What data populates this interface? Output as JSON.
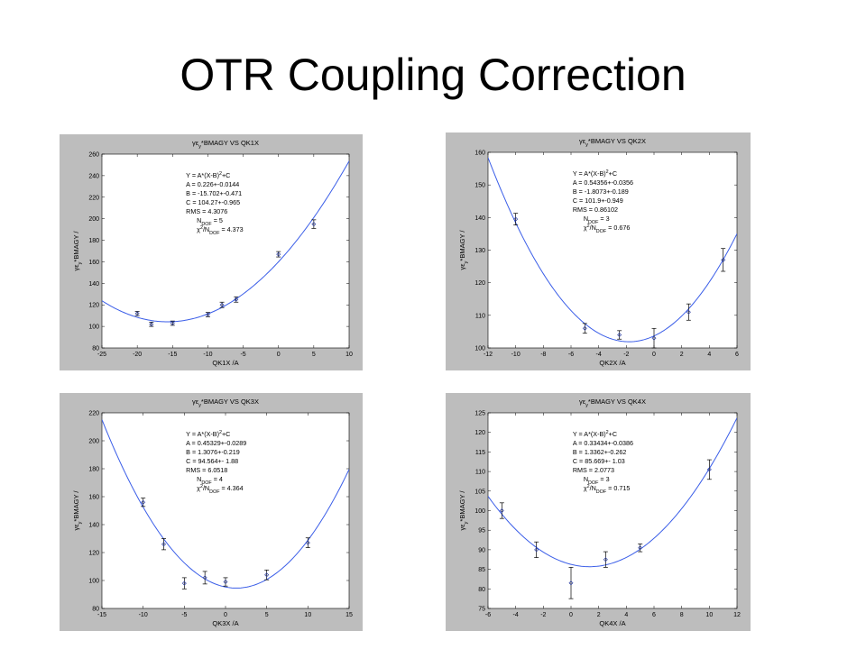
{
  "title": "OTR Coupling Correction",
  "colors": {
    "curve": "#3b5ee8",
    "marker": "#2d3fa0",
    "panel_bg": "#bdbdbd",
    "plot_bg": "#ffffff"
  },
  "chart_data": [
    {
      "type": "scatter",
      "title": "γε_y*BMAGY VS QK1X",
      "xlabel": "QK1X /A",
      "ylabel": "γε_y*BMAGY /",
      "xlim": [
        -25,
        10
      ],
      "ylim": [
        80,
        260
      ],
      "xticks": [
        -25,
        -20,
        -15,
        -10,
        -5,
        0,
        5,
        10
      ],
      "yticks": [
        80,
        100,
        120,
        140,
        160,
        180,
        200,
        220,
        240,
        260
      ],
      "points": [
        {
          "x": -20,
          "y": 112,
          "err": 2
        },
        {
          "x": -18,
          "y": 102,
          "err": 2
        },
        {
          "x": -15,
          "y": 103,
          "err": 2
        },
        {
          "x": -10,
          "y": 111,
          "err": 2
        },
        {
          "x": -8,
          "y": 120,
          "err": 2.5
        },
        {
          "x": -6,
          "y": 125,
          "err": 2.5
        },
        {
          "x": 0,
          "y": 167,
          "err": 2.5
        },
        {
          "x": 5,
          "y": 195,
          "err": 4
        }
      ],
      "fit": {
        "A": 0.226,
        "B": -15.702,
        "C": 104.27
      },
      "annotation": [
        "Y = A*(X-B)²+C",
        "A =  0.226+-0.0144",
        "B = -15.702+-0.471",
        "C =  104.27+-0.965",
        "RMS =  4.3076",
        "N_DOF = 5",
        "χ²/N_DOF = 4.373"
      ]
    },
    {
      "type": "scatter",
      "title": "γε_y*BMAGY VS QK2X",
      "xlabel": "QK2X /A",
      "ylabel": "γε_y*BMAGY /",
      "xlim": [
        -12,
        6
      ],
      "ylim": [
        100,
        160
      ],
      "xticks": [
        -12,
        -10,
        -8,
        -6,
        -4,
        -2,
        0,
        2,
        4,
        6
      ],
      "yticks": [
        100,
        110,
        120,
        130,
        140,
        150,
        160
      ],
      "points": [
        {
          "x": -10,
          "y": 139.5,
          "err": 1.8
        },
        {
          "x": -5,
          "y": 106,
          "err": 1.5
        },
        {
          "x": -2.5,
          "y": 104,
          "err": 1.3
        },
        {
          "x": 0,
          "y": 103,
          "err": 3
        },
        {
          "x": 2.5,
          "y": 111,
          "err": 2.5
        },
        {
          "x": 5,
          "y": 127,
          "err": 3.5
        }
      ],
      "fit": {
        "A": 0.54356,
        "B": -1.8073,
        "C": 101.9
      },
      "annotation": [
        "Y = A*(X-B)²+C",
        "A =  0.54356+-0.0356",
        "B =  -1.8073+-0.189",
        "C =  101.9+-0.949",
        "RMS =  0.86102",
        "N_DOF = 3",
        "χ²/N_DOF = 0.676"
      ]
    },
    {
      "type": "scatter",
      "title": "γε_y*BMAGY VS QK3X",
      "xlabel": "QK3X /A",
      "ylabel": "γε_y*BMAGY /",
      "xlim": [
        -15,
        15
      ],
      "ylim": [
        80,
        220
      ],
      "xticks": [
        -15,
        -10,
        -5,
        0,
        5,
        10,
        15
      ],
      "yticks": [
        80,
        100,
        120,
        140,
        160,
        180,
        200,
        220
      ],
      "points": [
        {
          "x": -10,
          "y": 156,
          "err": 3
        },
        {
          "x": -7.5,
          "y": 126,
          "err": 4
        },
        {
          "x": -5,
          "y": 98,
          "err": 4
        },
        {
          "x": -2.5,
          "y": 102,
          "err": 4.5
        },
        {
          "x": 0,
          "y": 99,
          "err": 3
        },
        {
          "x": 5,
          "y": 104,
          "err": 3.5
        },
        {
          "x": 10,
          "y": 127,
          "err": 3.5
        }
      ],
      "fit": {
        "A": 0.45329,
        "B": 1.3076,
        "C": 94.564
      },
      "annotation": [
        "Y = A*(X-B)²+C",
        "A =  0.45329+-0.0289",
        "B =  1.3076+-0.219",
        "C =  94.564+- 1.88",
        "RMS =  6.0518",
        "N_DOF = 4",
        "χ²/N_DOF = 4.364"
      ]
    },
    {
      "type": "scatter",
      "title": "γε_y*BMAGY VS QK4X",
      "xlabel": "QK4X /A",
      "ylabel": "γε_y*BMAGY /",
      "xlim": [
        -6,
        12
      ],
      "ylim": [
        75,
        125
      ],
      "xticks": [
        -6,
        -4,
        -2,
        0,
        2,
        4,
        6,
        8,
        10,
        12
      ],
      "yticks": [
        75,
        80,
        85,
        90,
        95,
        100,
        105,
        110,
        115,
        120,
        125
      ],
      "points": [
        {
          "x": -5,
          "y": 100,
          "err": 2
        },
        {
          "x": -2.5,
          "y": 90,
          "err": 2
        },
        {
          "x": 0,
          "y": 81.5,
          "err": 4
        },
        {
          "x": 2.5,
          "y": 87.5,
          "err": 2
        },
        {
          "x": 5,
          "y": 90.5,
          "err": 1
        },
        {
          "x": 10,
          "y": 110.5,
          "err": 2.5
        }
      ],
      "fit": {
        "A": 0.33434,
        "B": 1.3362,
        "C": 85.669
      },
      "annotation": [
        "Y = A*(X-B)²+C",
        "A =  0.33434+-0.0386",
        "B =  1.3362+-0.262",
        "C =  85.669+- 1.03",
        "RMS =  2.0773",
        "N_DOF = 3",
        "χ²/N_DOF = 0.715"
      ]
    }
  ]
}
